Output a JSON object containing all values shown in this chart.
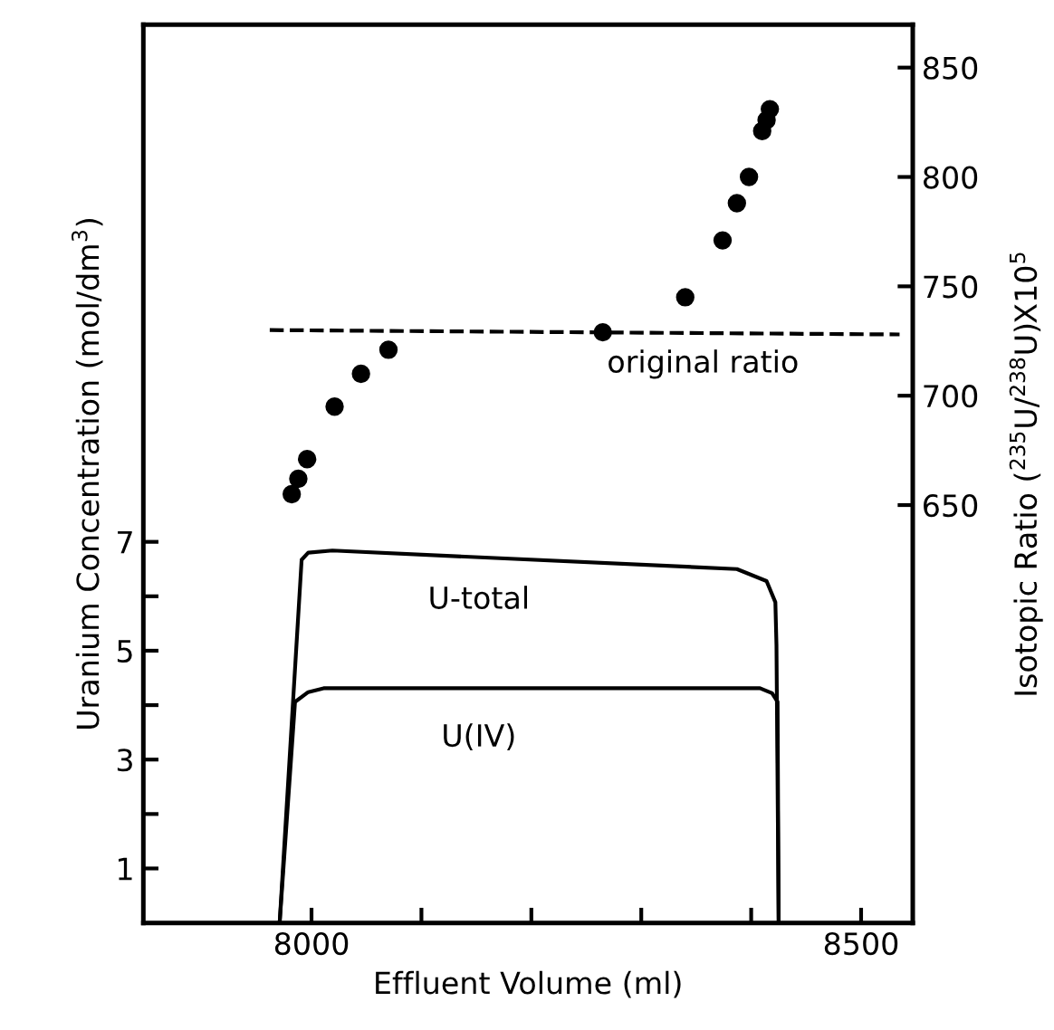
{
  "chart_data": {
    "type": "line",
    "xlabel": "Effluent Volume (ml)",
    "ylabel": "Uranium Concentration (mol/dm$^{3}$)",
    "y2label": "Isotopic Ratio ($^{235}$U/$^{238}$U)X10$^{5}$",
    "xlim": [
      7847,
      8547
    ],
    "ylim": [
      0,
      16.5
    ],
    "y2lim": [
      459,
      869.6
    ],
    "xticks": [
      8000,
      {
        "value": 8100,
        "label": null
      },
      {
        "value": 8200,
        "label": null
      },
      {
        "value": 8300,
        "label": null
      },
      {
        "value": 8400,
        "label": null
      },
      8500
    ],
    "yticks": [
      1,
      {
        "value": 2,
        "label": null
      },
      3,
      {
        "value": 4,
        "label": null
      },
      5,
      {
        "value": 6,
        "label": null
      },
      7
    ],
    "y2ticks": [
      650,
      700,
      750,
      800,
      850
    ],
    "grid": false,
    "legend": false,
    "series": [
      {
        "name": "U-total",
        "color": "#000000",
        "x": [
          7971,
          7991,
          7997,
          8019,
          8387,
          8414,
          8422,
          8423,
          8425
        ],
        "values": [
          0,
          6.67,
          6.8,
          6.84,
          6.5,
          6.28,
          5.89,
          5.11,
          0
        ]
      },
      {
        "name": "U(IV)",
        "color": "#000000",
        "x": [
          7971,
          7985,
          7997,
          8011,
          8408,
          8419,
          8424,
          8425
        ],
        "values": [
          0,
          4.06,
          4.24,
          4.31,
          4.31,
          4.22,
          4.06,
          0
        ]
      },
      {
        "name": "original ratio",
        "axis": "y2",
        "line_style": "dashed",
        "color": "#000000",
        "x": [
          7962,
          8535
        ],
        "values": [
          730,
          728
        ]
      },
      {
        "type": "scatter",
        "axis": "y2",
        "marker": "circle",
        "color": "#000000",
        "x": [
          7982,
          7988,
          7996,
          8021,
          8045,
          8070,
          8265,
          8340,
          8374,
          8387,
          8398,
          8410,
          8414,
          8417
        ],
        "values": [
          655,
          662,
          671,
          695,
          710,
          721,
          729,
          745,
          771,
          788,
          800,
          821,
          826,
          831
        ]
      }
    ]
  }
}
